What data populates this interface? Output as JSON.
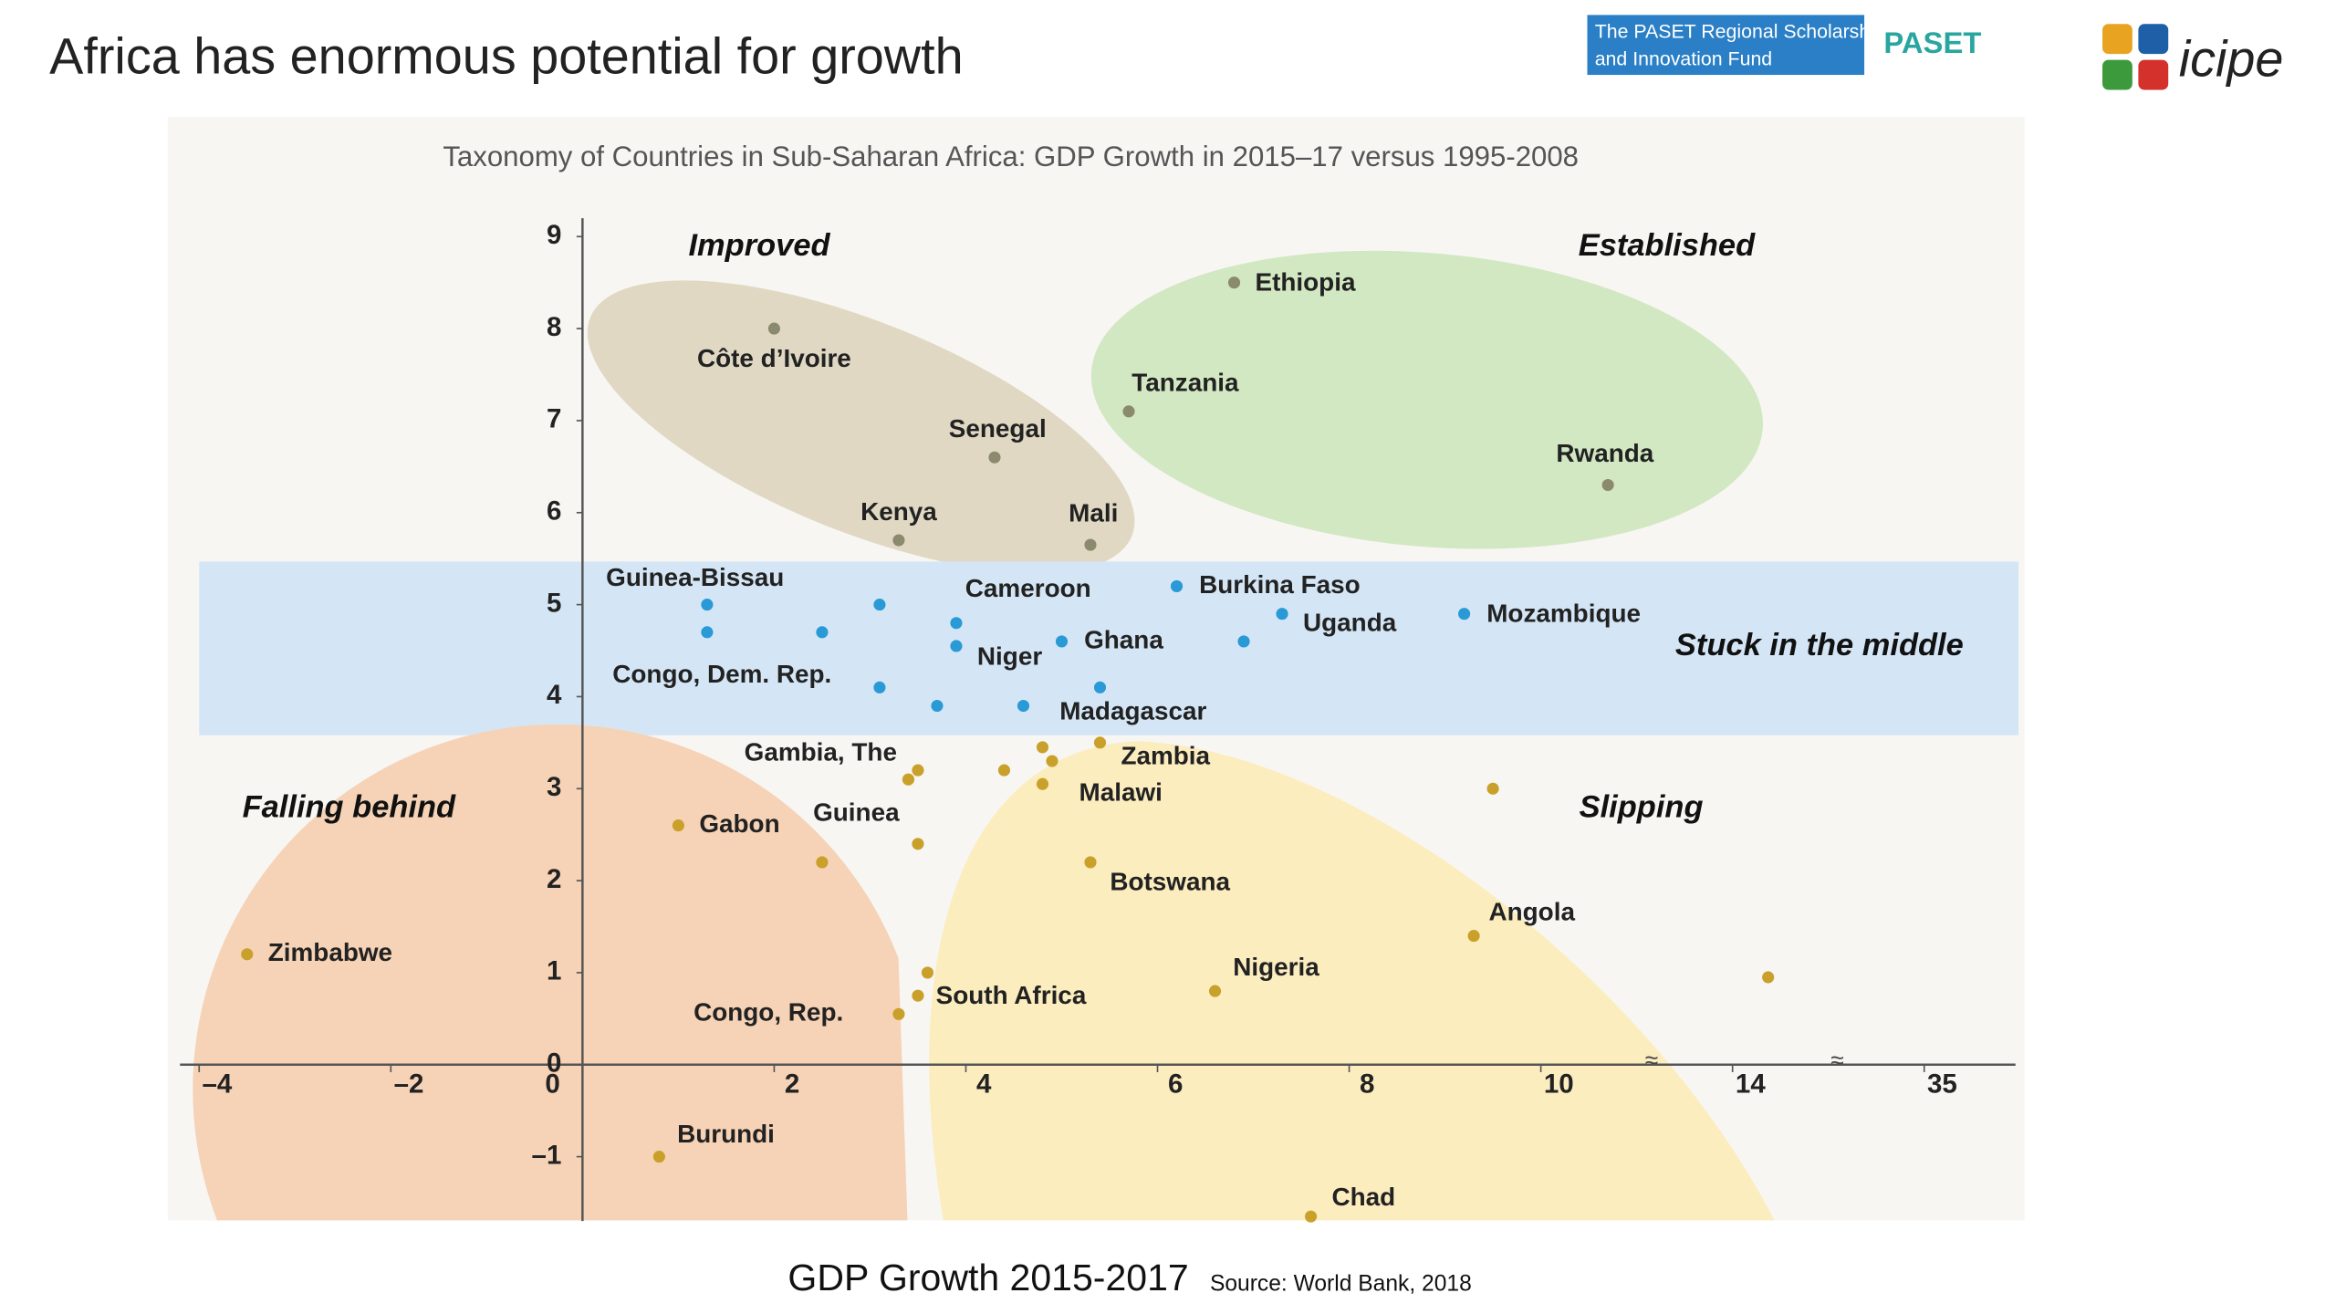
{
  "slide_title": "Africa has enormous potential for growth",
  "logos": {
    "paset_line1": "The PASET Regional Scholarship",
    "paset_line2": "and Innovation Fund",
    "paset": "PASET",
    "icipe": "icipe"
  },
  "chart_data": {
    "type": "scatter",
    "title": "Taxonomy of Countries in Sub-Saharan Africa: GDP Growth in 2015–17 versus 1995-2008",
    "x_label": "GDP Growth 2015-2017",
    "source": "Source: World Bank, 2018",
    "annotations": [
      "Improved",
      "Established",
      "Stuck in the middle",
      "Falling behind",
      "Slipping"
    ],
    "xlim": [
      -4.2,
      45
    ],
    "xticks": [
      {
        "value": -4,
        "label": "–4"
      },
      {
        "value": -2,
        "label": "–2"
      },
      0,
      2,
      4,
      6,
      8,
      10,
      14,
      35
    ],
    "ylim": [
      -1.7,
      9.2
    ],
    "yticks": [
      {
        "value": -1,
        "label": "–1"
      },
      0,
      1,
      2,
      3,
      4,
      5,
      6,
      7,
      8,
      9
    ],
    "series": [
      {
        "color": "#8c8a6e",
        "labels": [
          "Ethiopia",
          "Côte d’Ivoire",
          "Tanzania",
          "Senegal",
          "Rwanda",
          "Kenya",
          "Mali"
        ],
        "x": [
          6.8,
          2.0,
          5.7,
          4.3,
          11.4,
          3.3,
          5.3
        ],
        "values": [
          8.5,
          8.0,
          7.1,
          6.6,
          6.3,
          5.7,
          5.65
        ]
      },
      {
        "color": "#2a9ad6",
        "labels": [
          "Guinea-Bissau",
          "Congo, Dem. Rep.",
          "Cameroon",
          "Niger",
          "Burkina Faso",
          "Uganda",
          "Mozambique",
          "Ghana",
          "Madagascar",
          null,
          null,
          null,
          null,
          null,
          null
        ],
        "x": [
          1.3,
          1.3,
          3.9,
          3.9,
          6.2,
          7.3,
          9.2,
          5.0,
          5.4,
          2.5,
          3.1,
          3.1,
          3.7,
          4.6,
          6.9
        ],
        "values": [
          5.0,
          4.7,
          4.8,
          4.55,
          5.2,
          4.9,
          4.9,
          4.6,
          4.1,
          4.7,
          5.0,
          4.1,
          3.9,
          3.9,
          4.6
        ]
      },
      {
        "color": "#c9a02a",
        "labels": [
          "Gambia, The",
          "Guinea",
          "Zambia",
          "Malawi",
          "Gabon",
          "Zimbabwe",
          "Botswana",
          "Angola",
          "Nigeria",
          "South Africa",
          "Congo, Rep.",
          "Burundi",
          "Chad",
          null,
          null,
          null,
          null,
          null,
          null,
          null,
          null
        ],
        "x": [
          3.5,
          3.4,
          5.4,
          4.9,
          1.0,
          -3.5,
          5.3,
          9.3,
          6.6,
          3.5,
          3.3,
          0.8,
          7.6,
          2.5,
          3.5,
          3.6,
          4.4,
          4.8,
          4.8,
          9.5,
          17.9
        ],
        "values": [
          3.2,
          3.1,
          3.5,
          3.3,
          2.6,
          1.2,
          2.2,
          1.4,
          0.8,
          0.75,
          0.55,
          -1.0,
          -1.65,
          2.2,
          2.4,
          1.0,
          3.2,
          3.05,
          3.45,
          3.0,
          0.95
        ]
      }
    ]
  }
}
